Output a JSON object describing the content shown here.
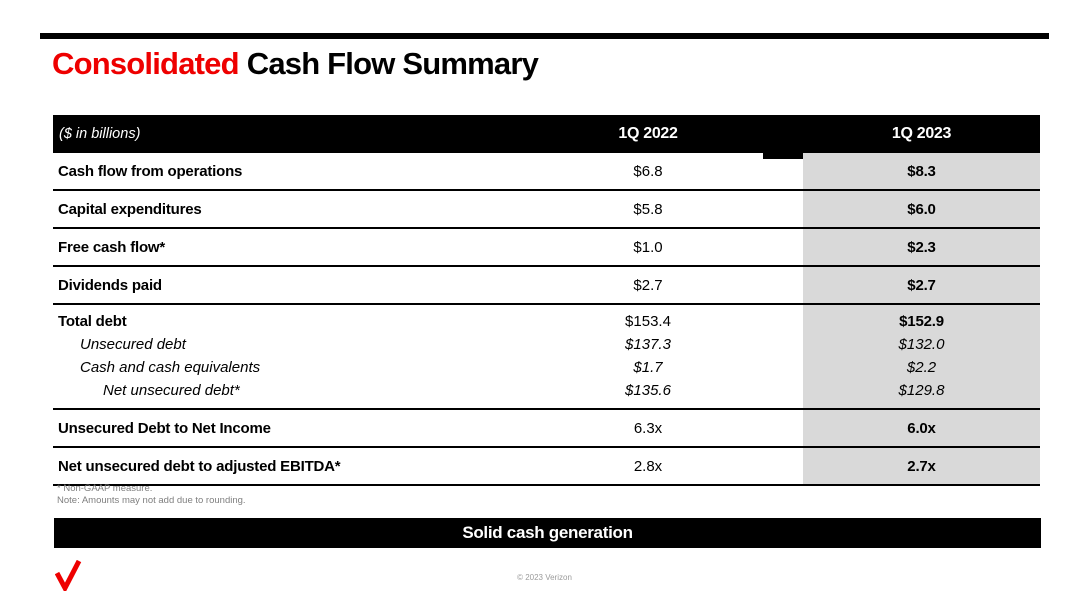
{
  "title": {
    "highlight": "Consolidated",
    "rest": "Cash Flow Summary"
  },
  "table": {
    "header": {
      "unit_label": "($ in billions)",
      "col_2022": "1Q 2022",
      "col_2023": "1Q 2023"
    },
    "rows": [
      {
        "type": "data",
        "label": "Cash flow from operations",
        "v2022": "$6.8",
        "v2023": "$8.3",
        "emphasis": "bold"
      },
      {
        "type": "data",
        "label": "Capital expenditures",
        "v2022": "$5.8",
        "v2023": "$6.0",
        "emphasis": "bold"
      },
      {
        "type": "data",
        "label": "Free cash flow*",
        "v2022": "$1.0",
        "v2023": "$2.3",
        "emphasis": "bold"
      },
      {
        "type": "data",
        "label": "Dividends paid",
        "v2022": "$2.7",
        "v2023": "$2.7",
        "emphasis": "bold"
      },
      {
        "type": "group",
        "lines": [
          {
            "label": "Total debt",
            "v2022": "$153.4",
            "v2023": "$152.9",
            "emphasis": "bold",
            "indent": 0
          },
          {
            "label": "Unsecured debt",
            "v2022": "$137.3",
            "v2023": "$132.0",
            "emphasis": "italic",
            "indent": 1
          },
          {
            "label": "Cash and cash equivalents",
            "v2022": "$1.7",
            "v2023": "$2.2",
            "emphasis": "italic",
            "indent": 1
          },
          {
            "label": "Net unsecured debt*",
            "v2022": "$135.6",
            "v2023": "$129.8",
            "emphasis": "italic",
            "indent": 2
          }
        ]
      },
      {
        "type": "data",
        "label": "Unsecured Debt to Net Income",
        "v2022": "6.3x",
        "v2023": "6.0x",
        "emphasis": "bold"
      },
      {
        "type": "data",
        "label": "Net unsecured debt to adjusted EBITDA*",
        "v2022": "2.8x",
        "v2023": "2.7x",
        "emphasis": "bold"
      }
    ]
  },
  "footnotes": [
    "* Non-GAAP measure.",
    "Note: Amounts may not add due to rounding."
  ],
  "banner": {
    "text": "Solid cash generation"
  },
  "footer": {
    "copyright": "© 2023 Verizon",
    "logo": "verizon-checkmark-logo"
  },
  "colors": {
    "accent_red": "#ee0000",
    "highlight_column_bg": "#d9d9d9",
    "bar_black": "#000000"
  }
}
